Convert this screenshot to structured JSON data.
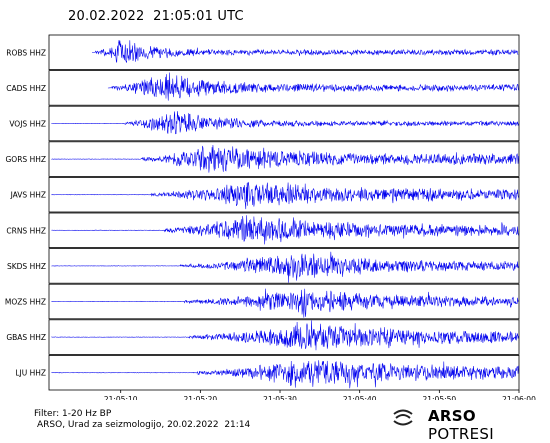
{
  "title": "20.02.2022  21:05:01 UTC",
  "footer": {
    "filter": "Filter: 1-20 Hz BP",
    "credit": "ARSO, Urad za seizmologijo, 20.02.2022  21:14"
  },
  "logo": {
    "bold": "ARSO",
    "light": "POTRESI"
  },
  "colors": {
    "trace": "#0000ee",
    "axis": "#000000"
  },
  "chart_data": {
    "type": "line",
    "title": "20.02.2022  21:05:01 UTC",
    "x_axis": {
      "range": [
        "21:05:01",
        "21:06:00"
      ],
      "ticks": [
        "21:05:10",
        "21:05:20",
        "21:05:30",
        "21:05:40",
        "21:05:50",
        "21:06:00"
      ],
      "tick_seconds": [
        9,
        19,
        29,
        39,
        49,
        59
      ],
      "range_seconds": [
        0,
        59
      ]
    },
    "grid": false,
    "series": [
      {
        "name": "ROBS HHZ",
        "onset": 5.8,
        "peak": 9.5,
        "decay": 3.5,
        "amp": 1.0,
        "coda": 0.18,
        "seed": 11
      },
      {
        "name": "CADS HHZ",
        "onset": 7.8,
        "peak": 14.5,
        "decay": 6.0,
        "amp": 1.0,
        "coda": 0.22,
        "seed": 23
      },
      {
        "name": "VOJS HHZ",
        "onset": 9.5,
        "peak": 15.8,
        "decay": 5.5,
        "amp": 0.9,
        "coda": 0.18,
        "seed": 37
      },
      {
        "name": "GORS HHZ",
        "onset": 11.5,
        "peak": 20.5,
        "decay": 8.0,
        "amp": 1.0,
        "coda": 0.35,
        "seed": 41
      },
      {
        "name": "JAVS HHZ",
        "onset": 12.8,
        "peak": 24.5,
        "decay": 9.0,
        "amp": 0.95,
        "coda": 0.38,
        "seed": 53
      },
      {
        "name": "CRNS HHZ",
        "onset": 14.5,
        "peak": 25.0,
        "decay": 9.0,
        "amp": 1.0,
        "coda": 0.35,
        "seed": 67
      },
      {
        "name": "SKDS HHZ",
        "onset": 16.5,
        "peak": 31.0,
        "decay": 9.0,
        "amp": 0.9,
        "coda": 0.3,
        "seed": 71
      },
      {
        "name": "MOZS HHZ",
        "onset": 17.0,
        "peak": 32.0,
        "decay": 8.5,
        "amp": 0.95,
        "coda": 0.28,
        "seed": 83
      },
      {
        "name": "GBAS HHZ",
        "onset": 17.5,
        "peak": 32.5,
        "decay": 10.0,
        "amp": 1.0,
        "coda": 0.35,
        "seed": 97
      },
      {
        "name": "LJU HHZ",
        "onset": 18.5,
        "peak": 32.0,
        "decay": 11.0,
        "amp": 1.0,
        "coda": 0.38,
        "seed": 101
      }
    ]
  }
}
